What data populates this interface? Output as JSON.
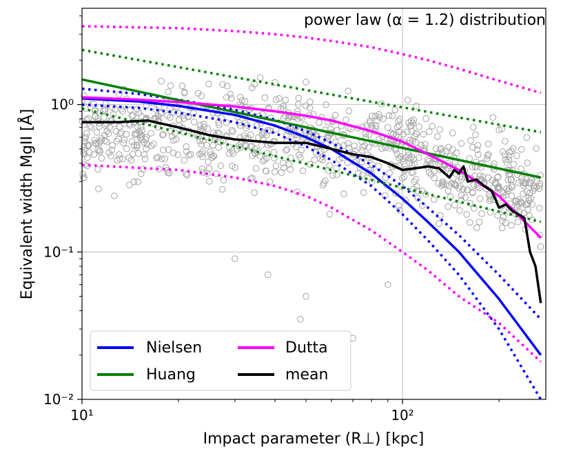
{
  "chart_data": {
    "type": "scatter",
    "title": "power law (α = 1.2) distribution",
    "xlabel": "Impact parameter (R⊥) [kpc]",
    "ylabel": "Equivalent width MgII [Å]",
    "xscale": "log",
    "yscale": "log",
    "xlim": [
      10,
      280
    ],
    "ylim": [
      0.01,
      4.5
    ],
    "grid": true,
    "legend_position": "lower-left",
    "x_ticks": [
      {
        "value": 10,
        "label": "10¹"
      },
      {
        "value": 100,
        "label": "10²"
      }
    ],
    "y_ticks": [
      {
        "value": 0.01,
        "label": "10⁻²"
      },
      {
        "value": 0.1,
        "label": "10⁻¹"
      },
      {
        "value": 1,
        "label": "10⁰"
      }
    ],
    "scatter": {
      "name": "data",
      "color": "#aaaaaa",
      "approx_count": 2500,
      "x_range": [
        10,
        270
      ],
      "density": [
        {
          "x": 10,
          "y_center": 0.6
        },
        {
          "x": 25,
          "y_center": 0.7
        },
        {
          "x": 50,
          "y_center": 0.6
        },
        {
          "x": 100,
          "y_center": 0.45
        },
        {
          "x": 200,
          "y_center": 0.3
        },
        {
          "x": 270,
          "y_center": 0.25
        }
      ],
      "outliers": [
        {
          "x": 48,
          "y": 0.035
        },
        {
          "x": 70,
          "y": 0.026
        },
        {
          "x": 50,
          "y": 0.05
        },
        {
          "x": 90,
          "y": 0.06
        },
        {
          "x": 38,
          "y": 0.07
        },
        {
          "x": 30,
          "y": 0.09
        }
      ]
    },
    "series": [
      {
        "name": "Nielsen",
        "color": "#0000ff",
        "style": "solid",
        "x": [
          10,
          15,
          20,
          30,
          40,
          50,
          60,
          80,
          100,
          120,
          150,
          200,
          270
        ],
        "y": [
          1.1,
          1.05,
          0.98,
          0.85,
          0.72,
          0.6,
          0.5,
          0.34,
          0.23,
          0.16,
          0.1,
          0.048,
          0.02
        ]
      },
      {
        "name": "Nielsen upper",
        "color": "#0000ff",
        "style": "dotted",
        "x": [
          10,
          15,
          20,
          30,
          40,
          50,
          60,
          80,
          100,
          120,
          150,
          200,
          270
        ],
        "y": [
          1.28,
          1.18,
          1.08,
          0.92,
          0.79,
          0.66,
          0.55,
          0.39,
          0.28,
          0.2,
          0.13,
          0.07,
          0.035
        ]
      },
      {
        "name": "Nielsen lower",
        "color": "#0000ff",
        "style": "dotted",
        "x": [
          10,
          15,
          20,
          30,
          40,
          50,
          60,
          80,
          100,
          120,
          150,
          200,
          270
        ],
        "y": [
          1.0,
          0.95,
          0.88,
          0.76,
          0.64,
          0.52,
          0.42,
          0.28,
          0.18,
          0.12,
          0.07,
          0.03,
          0.01
        ]
      },
      {
        "name": "Huang",
        "color": "#008000",
        "style": "solid",
        "x": [
          10,
          270
        ],
        "y": [
          1.48,
          0.32
        ]
      },
      {
        "name": "Huang upper",
        "color": "#008000",
        "style": "dotted",
        "x": [
          10,
          270
        ],
        "y": [
          2.35,
          0.65
        ]
      },
      {
        "name": "Huang lower",
        "color": "#008000",
        "style": "dotted",
        "x": [
          10,
          270
        ],
        "y": [
          0.94,
          0.16
        ]
      },
      {
        "name": "Dutta",
        "color": "#ff00ff",
        "style": "solid",
        "x": [
          10,
          15,
          20,
          30,
          40,
          50,
          60,
          80,
          100,
          120,
          150,
          200,
          270
        ],
        "y": [
          1.12,
          1.08,
          1.04,
          0.97,
          0.9,
          0.84,
          0.78,
          0.66,
          0.56,
          0.46,
          0.36,
          0.24,
          0.125
        ]
      },
      {
        "name": "Dutta upper",
        "color": "#ff00ff",
        "style": "dotted",
        "x": [
          10,
          20,
          30,
          40,
          50,
          60,
          80,
          100,
          120,
          150,
          200,
          270
        ],
        "y": [
          3.4,
          3.3,
          3.15,
          3.0,
          2.85,
          2.7,
          2.45,
          2.2,
          2.0,
          1.75,
          1.45,
          1.2
        ]
      },
      {
        "name": "Dutta lower",
        "color": "#ff00ff",
        "style": "dotted",
        "x": [
          10,
          20,
          30,
          40,
          50,
          60,
          80,
          100,
          120,
          150,
          200,
          270
        ],
        "y": [
          0.39,
          0.36,
          0.32,
          0.28,
          0.24,
          0.2,
          0.14,
          0.1,
          0.075,
          0.05,
          0.033,
          0.018
        ]
      },
      {
        "name": "mean",
        "color": "#000000",
        "style": "solid",
        "x": [
          10,
          13,
          16,
          20,
          25,
          30,
          40,
          50,
          60,
          70,
          80,
          90,
          100,
          110,
          120,
          130,
          140,
          145,
          150,
          155,
          160,
          170,
          180,
          190,
          200,
          210,
          220,
          230,
          240,
          250,
          260,
          270
        ],
        "y": [
          0.76,
          0.76,
          0.78,
          0.7,
          0.62,
          0.58,
          0.55,
          0.55,
          0.5,
          0.46,
          0.44,
          0.4,
          0.36,
          0.37,
          0.38,
          0.37,
          0.32,
          0.36,
          0.34,
          0.38,
          0.3,
          0.31,
          0.28,
          0.26,
          0.2,
          0.21,
          0.19,
          0.18,
          0.17,
          0.1,
          0.08,
          0.045
        ]
      }
    ],
    "legend": [
      {
        "label": "Nielsen",
        "color": "#0000ff"
      },
      {
        "label": "Huang",
        "color": "#008000"
      },
      {
        "label": "Dutta",
        "color": "#ff00ff"
      },
      {
        "label": "mean",
        "color": "#000000"
      }
    ]
  }
}
